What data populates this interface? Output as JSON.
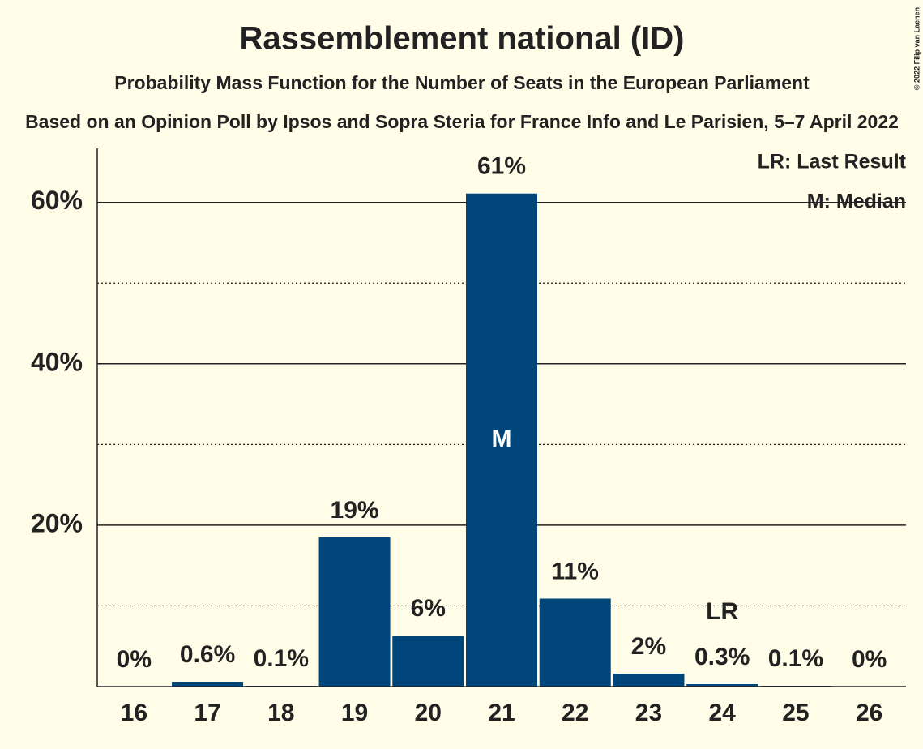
{
  "chart_data": {
    "type": "bar",
    "title": "Rassemblement national (ID)",
    "subtitle": "Probability Mass Function for the Number of Seats in the European Parliament",
    "subtitle2": "Based on an Opinion Poll by Ipsos and Sopra Steria for France Info and Le Parisien, 5–7 April 2022",
    "copyright": "© 2022 Filip van Laenen",
    "categories": [
      "16",
      "17",
      "18",
      "19",
      "20",
      "21",
      "22",
      "23",
      "24",
      "25",
      "26"
    ],
    "values": [
      0,
      0.6,
      0.1,
      18.5,
      6.3,
      61.1,
      10.9,
      1.6,
      0.3,
      0.1,
      0
    ],
    "value_labels": [
      "0%",
      "0.6%",
      "0.1%",
      "19%",
      "6%",
      "61%",
      "11%",
      "2%",
      "0.3%",
      "0.1%",
      "0%"
    ],
    "color": "#00467a",
    "ylim": [
      0,
      66.7
    ],
    "yticks": [
      {
        "value": 20,
        "label": "20%"
      },
      {
        "value": 40,
        "label": "40%"
      },
      {
        "value": 60,
        "label": "60%"
      }
    ],
    "minor_gridlines": [
      10,
      30,
      50
    ],
    "grid": true,
    "annotations": [
      {
        "text": "M",
        "category": "21"
      },
      {
        "text": "LR",
        "category": "24"
      }
    ],
    "legend": [
      "LR: Last Result",
      "M: Median"
    ]
  }
}
